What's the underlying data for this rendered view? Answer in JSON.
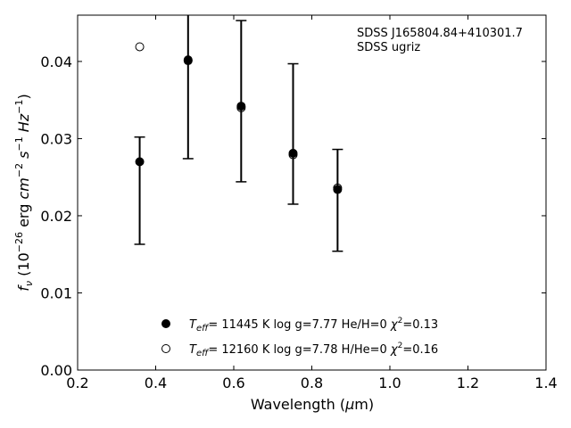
{
  "chart_data": {
    "type": "scatter",
    "title": "",
    "xlabel": "Wavelength (μm)",
    "ylabel": "fν (10⁻²⁶ erg cm⁻² s⁻¹ Hz⁻¹)",
    "xlim": [
      0.2,
      1.4
    ],
    "ylim": [
      0.0,
      0.046
    ],
    "x_ticks": [
      "0.2",
      "0.4",
      "0.6",
      "0.8",
      "1.0",
      "1.2",
      "1.4"
    ],
    "y_ticks": [
      "0.00",
      "0.01",
      "0.02",
      "0.03",
      "0.04"
    ],
    "grid": false,
    "annotations": [
      "SDSS J165804.84+410301.7",
      "SDSS ugriz"
    ],
    "observed": {
      "x": [
        0.359,
        0.483,
        0.619,
        0.752,
        0.866
      ],
      "y": [
        0.027,
        0.0402,
        0.0342,
        0.0281,
        0.0234
      ],
      "yerr_low": [
        0.0163,
        0.0274,
        0.0244,
        0.0215,
        0.0154
      ],
      "yerr_high": [
        0.0302,
        0.047,
        0.0453,
        0.0397,
        0.0286
      ]
    },
    "series": [
      {
        "name": "Teff= 11445 K  log g=7.77  He/H=0  χ²=0.13",
        "marker": "filled-circle",
        "x": [
          0.359,
          0.483,
          0.619,
          0.752,
          0.866
        ],
        "y": [
          0.027,
          0.0402,
          0.0342,
          0.0281,
          0.0234
        ]
      },
      {
        "name": "Teff= 12160 K  log g=7.78  H/He=0  χ²=0.16",
        "marker": "open-circle",
        "x": [
          0.359,
          0.483,
          0.619,
          0.752,
          0.866
        ],
        "y": [
          0.0419,
          0.0401,
          0.034,
          0.0279,
          0.0236
        ]
      }
    ],
    "legend_position": "lower-center"
  },
  "legend": {
    "entries": [
      {
        "teff_sym": "T",
        "teff_sub": "eff",
        "rest_a": "= 11445 K  log g=7.77  He/H=0  ",
        "chi": "χ",
        "chi_sup": "2",
        "rest_b": "=0.13"
      },
      {
        "teff_sym": "T",
        "teff_sub": "eff",
        "rest_a": "= 12160 K  log g=7.78  H/He=0  ",
        "chi": "χ",
        "chi_sup": "2",
        "rest_b": "=0.16"
      }
    ]
  },
  "labels": {
    "x_main": "Wavelength (",
    "x_mu": "μ",
    "x_end": "m)",
    "y_f": "f",
    "y_nu": "ν",
    "y_open": " (10",
    "y_exp": "−26",
    "y_erg": " erg ",
    "y_cm": "cm",
    "y_cm_exp": "−2",
    "y_s": " s",
    "y_s_exp": "−1",
    "y_hz": " Hz",
    "y_hz_exp": "−1",
    "y_close": ")"
  }
}
